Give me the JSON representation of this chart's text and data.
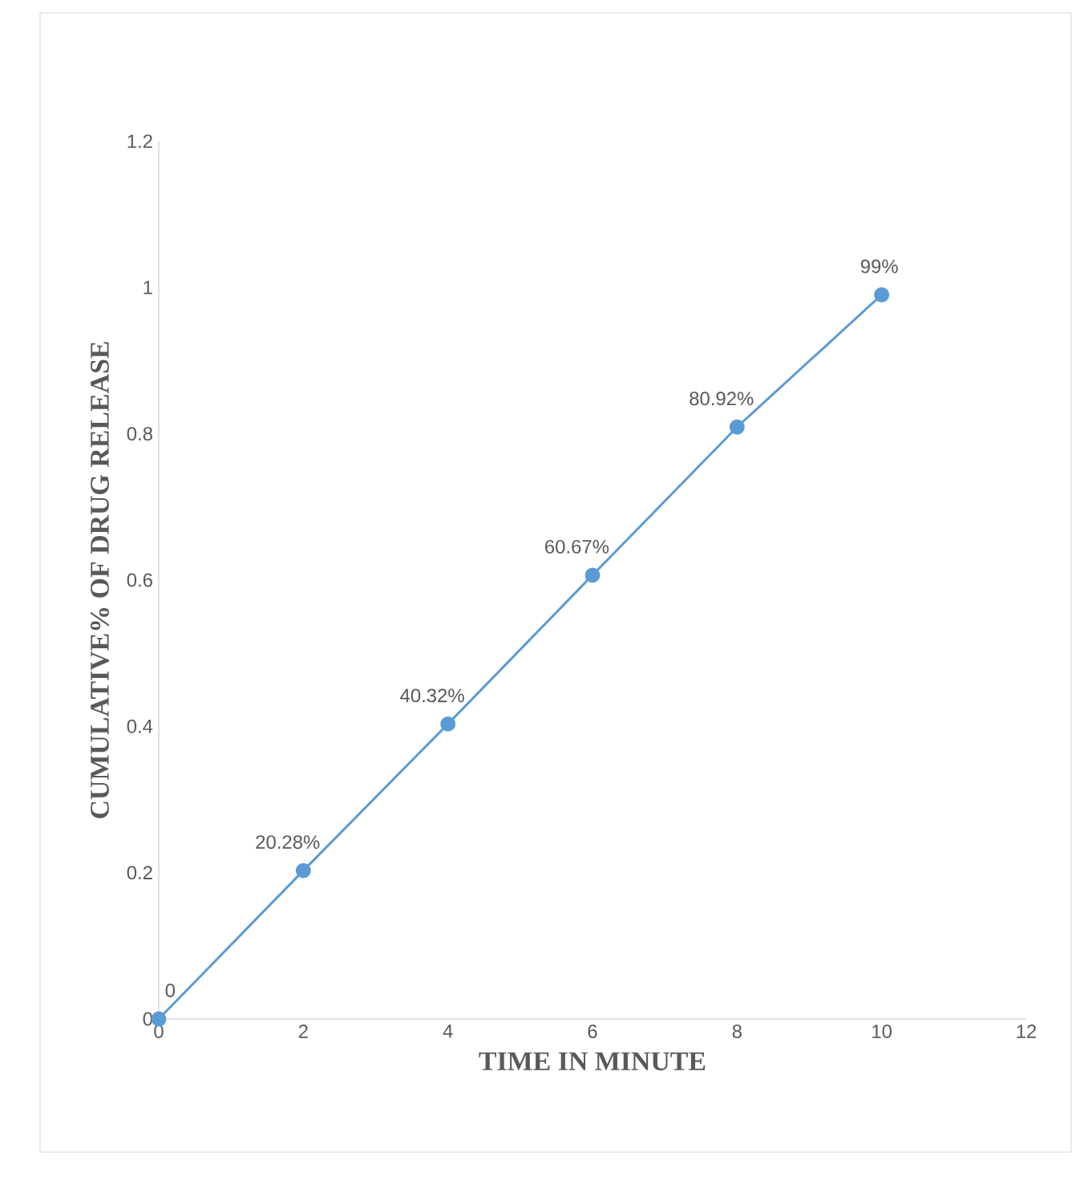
{
  "chart_data": {
    "type": "line",
    "xlabel": "TIME IN MINUTE",
    "ylabel": "CUMULATIVE% OF DRUG RELEASE",
    "x": [
      0,
      2,
      4,
      6,
      8,
      10
    ],
    "series": [
      {
        "color": "#5b9bd5",
        "values": [
          0,
          0.2028,
          0.4032,
          0.6067,
          0.8092,
          0.99
        ],
        "value_labels": [
          "0",
          "20.28%",
          "40.32%",
          "60.67%",
          "80.92%",
          "99%"
        ]
      }
    ],
    "xlim": [
      0,
      12
    ],
    "ylim": [
      0,
      1.2
    ],
    "xticks": [
      0,
      2,
      4,
      6,
      8,
      10,
      12
    ],
    "yticks": [
      0,
      0.2,
      0.4,
      0.6,
      0.8,
      1,
      1.2
    ],
    "marker": "circle",
    "line_style": "solid",
    "grid": false
  }
}
